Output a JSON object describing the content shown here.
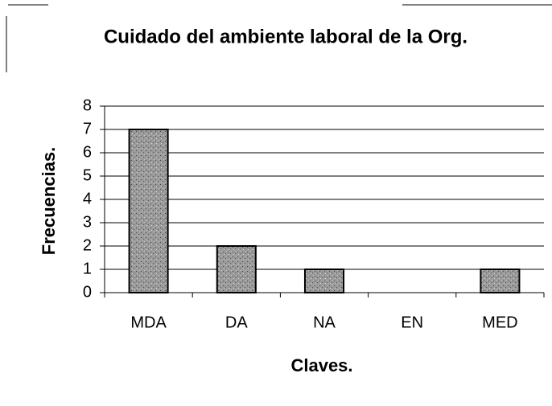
{
  "chart_data": {
    "type": "bar",
    "title": "Cuidado del ambiente laboral de la Org.",
    "x_label": "Claves.",
    "y_label": "Frecuencias.",
    "categories": [
      "MDA",
      "DA",
      "NA",
      "EN",
      "MED"
    ],
    "values": [
      7,
      2,
      1,
      0,
      1
    ],
    "color": "#8a8a8a",
    "ylim": [
      0,
      8
    ],
    "yticks": [
      0,
      1,
      2,
      3,
      4,
      5,
      6,
      7,
      8
    ],
    "grid": true
  }
}
